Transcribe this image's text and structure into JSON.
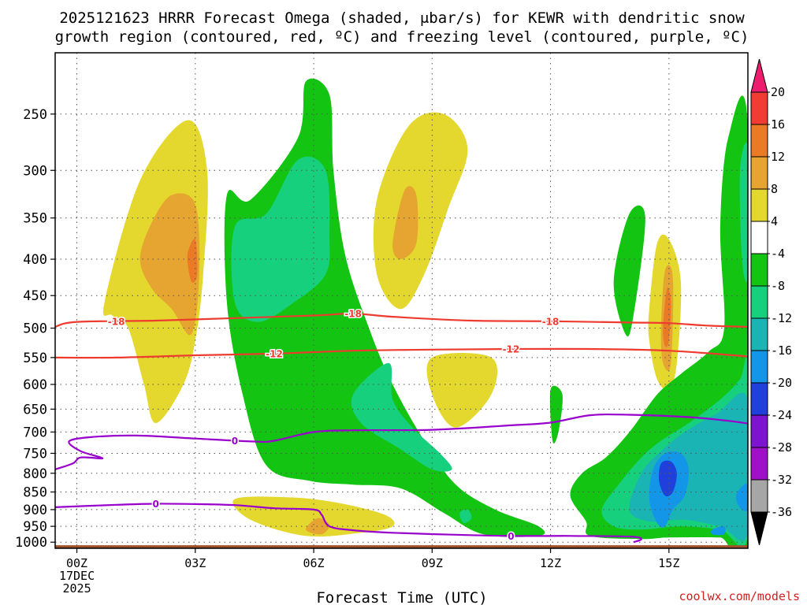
{
  "chart_data": {
    "type": "contour",
    "title_lines": [
      "2025121623 HRRR Forecast Omega (shaded, μbar/s) for KEWR with dendritic snow",
      "growth region (contoured, red, ºC) and freezing level (contoured, purple, ºC)"
    ],
    "xlabel": "Forecast Time (UTC)",
    "x_ticks": [
      {
        "hour": 0,
        "label": "00Z",
        "sub": [
          "17DEC",
          "2025"
        ]
      },
      {
        "hour": 3,
        "label": "03Z"
      },
      {
        "hour": 6,
        "label": "06Z"
      },
      {
        "hour": 9,
        "label": "09Z"
      },
      {
        "hour": 12,
        "label": "12Z"
      },
      {
        "hour": 15,
        "label": "15Z"
      }
    ],
    "xlim": [
      -0.55,
      17
    ],
    "y_ticks": [
      250,
      300,
      350,
      400,
      450,
      500,
      550,
      600,
      650,
      700,
      750,
      800,
      850,
      900,
      950,
      1000
    ],
    "ylim_hPa": [
      1020,
      205
    ],
    "colorbar": {
      "labels": [
        "20",
        "16",
        "12",
        "8",
        "4",
        "-4",
        "-8",
        "-12",
        "-16",
        "-20",
        "-24",
        "-28",
        "-32",
        "-36"
      ],
      "colors": [
        "#ee1c6e",
        "#f03c33",
        "#ea7a25",
        "#e6a531",
        "#e4d82f",
        "#ffffff",
        "#13c413",
        "#16d07e",
        "#1ab4b4",
        "#1496e8",
        "#2040dc",
        "#7c14d0",
        "#a010c8",
        "#a6a6a6",
        "#000000"
      ]
    },
    "surface_color": "#a0522d",
    "omega_regions": [
      {
        "level": 4,
        "color": "#e4d82f",
        "points": [
          [
            0.7,
            460
          ],
          [
            1.6,
            310
          ],
          [
            2.8,
            255
          ],
          [
            3.3,
            300
          ],
          [
            3.2,
            420
          ],
          [
            3.0,
            520
          ],
          [
            2.7,
            600
          ],
          [
            2.0,
            680
          ],
          [
            1.7,
            600
          ],
          [
            1.3,
            500
          ],
          [
            0.9,
            480
          ]
        ]
      },
      {
        "level": 8,
        "color": "#e6a531",
        "points": [
          [
            1.6,
            400
          ],
          [
            1.9,
            355
          ],
          [
            2.4,
            325
          ],
          [
            3.0,
            335
          ],
          [
            3.1,
            420
          ],
          [
            2.9,
            510
          ],
          [
            2.4,
            470
          ],
          [
            1.9,
            440
          ]
        ]
      },
      {
        "level": 12,
        "color": "#ea7a25",
        "points": [
          [
            2.8,
            395
          ],
          [
            3.0,
            375
          ],
          [
            3.05,
            420
          ],
          [
            2.9,
            430
          ]
        ]
      },
      {
        "level": -4,
        "color": "#13c413",
        "points": [
          [
            3.8,
            325
          ],
          [
            4.4,
            330
          ],
          [
            5.6,
            270
          ],
          [
            5.8,
            225
          ],
          [
            6.4,
            235
          ],
          [
            6.5,
            300
          ],
          [
            6.8,
            395
          ],
          [
            7.4,
            500
          ],
          [
            8.0,
            600
          ],
          [
            8.8,
            720
          ],
          [
            9.6,
            830
          ],
          [
            10.6,
            900
          ],
          [
            11.7,
            950
          ],
          [
            11.7,
            980
          ],
          [
            10.3,
            975
          ],
          [
            9.3,
            910
          ],
          [
            8.2,
            840
          ],
          [
            7.0,
            830
          ],
          [
            5.9,
            820
          ],
          [
            4.8,
            780
          ],
          [
            4.2,
            620
          ],
          [
            3.8,
            460
          ]
        ]
      },
      {
        "level": -8,
        "color": "#16d07e",
        "points": [
          [
            4.0,
            460
          ],
          [
            4.0,
            360
          ],
          [
            4.8,
            345
          ],
          [
            5.6,
            290
          ],
          [
            6.3,
            300
          ],
          [
            6.4,
            370
          ],
          [
            6.3,
            420
          ],
          [
            5.5,
            460
          ],
          [
            4.6,
            490
          ]
        ]
      },
      {
        "level": -8,
        "color": "#16d07e",
        "points": [
          [
            7.9,
            560
          ],
          [
            8.0,
            630
          ],
          [
            8.5,
            690
          ],
          [
            9.2,
            750
          ],
          [
            9.5,
            790
          ],
          [
            9.0,
            790
          ],
          [
            8.2,
            740
          ],
          [
            7.2,
            680
          ],
          [
            7.0,
            620
          ]
        ]
      },
      {
        "level": -8,
        "color": "#16d07e",
        "points": [
          [
            9.7,
            910
          ],
          [
            9.9,
            900
          ],
          [
            10.0,
            925
          ],
          [
            9.8,
            940
          ]
        ]
      },
      {
        "level": 4,
        "color": "#e4d82f",
        "points": [
          [
            7.6,
            330
          ],
          [
            8.4,
            260
          ],
          [
            9.3,
            250
          ],
          [
            9.9,
            280
          ],
          [
            9.4,
            340
          ],
          [
            8.8,
            420
          ],
          [
            8.2,
            470
          ],
          [
            7.6,
            420
          ]
        ]
      },
      {
        "level": 8,
        "color": "#e6a531",
        "points": [
          [
            8.0,
            380
          ],
          [
            8.3,
            320
          ],
          [
            8.6,
            325
          ],
          [
            8.6,
            380
          ],
          [
            8.2,
            400
          ]
        ]
      },
      {
        "level": 4,
        "color": "#e4d82f",
        "points": [
          [
            9.0,
            550
          ],
          [
            10.5,
            550
          ],
          [
            10.5,
            620
          ],
          [
            9.6,
            690
          ],
          [
            9.0,
            620
          ]
        ]
      },
      {
        "level": 4,
        "color": "#e4d82f",
        "points": [
          [
            4.0,
            870
          ],
          [
            5.4,
            865
          ],
          [
            6.6,
            880
          ],
          [
            7.8,
            915
          ],
          [
            8.0,
            950
          ],
          [
            7.2,
            970
          ],
          [
            5.8,
            980
          ],
          [
            4.4,
            930
          ]
        ]
      },
      {
        "level": 8,
        "color": "#e6a531",
        "points": [
          [
            5.8,
            960
          ],
          [
            6.1,
            925
          ],
          [
            6.4,
            945
          ],
          [
            6.2,
            975
          ]
        ]
      },
      {
        "level": -4,
        "color": "#13c413",
        "points": [
          [
            12.0,
            610
          ],
          [
            12.3,
            620
          ],
          [
            12.2,
            700
          ],
          [
            12.05,
            720
          ]
        ]
      },
      {
        "level": -4,
        "color": "#13c413",
        "points": [
          [
            13.6,
            430
          ],
          [
            14.0,
            345
          ],
          [
            14.4,
            350
          ],
          [
            14.1,
            480
          ],
          [
            13.9,
            510
          ]
        ]
      },
      {
        "level": 4,
        "color": "#e4d82f",
        "points": [
          [
            14.5,
            470
          ],
          [
            14.7,
            380
          ],
          [
            15.0,
            375
          ],
          [
            15.3,
            430
          ],
          [
            15.2,
            560
          ],
          [
            15.0,
            610
          ],
          [
            14.7,
            590
          ],
          [
            14.5,
            520
          ]
        ]
      },
      {
        "level": 8,
        "color": "#e6a531",
        "points": [
          [
            14.8,
            500
          ],
          [
            14.9,
            415
          ],
          [
            15.1,
            425
          ],
          [
            15.05,
            560
          ],
          [
            14.85,
            560
          ]
        ]
      },
      {
        "level": 12,
        "color": "#ea7a25",
        "points": [
          [
            14.85,
            500
          ],
          [
            14.95,
            440
          ],
          [
            15.05,
            460
          ],
          [
            15.0,
            520
          ],
          [
            14.9,
            530
          ]
        ]
      },
      {
        "level": -4,
        "color": "#13c413",
        "points": [
          [
            16.4,
            500
          ],
          [
            16.3,
            360
          ],
          [
            16.5,
            270
          ],
          [
            17.0,
            260
          ],
          [
            17.0,
            995
          ],
          [
            16.3,
            985
          ],
          [
            15.0,
            985
          ],
          [
            14.3,
            990
          ],
          [
            13.0,
            980
          ],
          [
            12.9,
            935
          ],
          [
            12.5,
            860
          ],
          [
            12.8,
            800
          ],
          [
            13.4,
            760
          ],
          [
            14.0,
            700
          ],
          [
            14.7,
            620
          ],
          [
            15.3,
            580
          ],
          [
            16.0,
            540
          ]
        ]
      },
      {
        "level": -8,
        "color": "#16d07e",
        "points": [
          [
            13.3,
            900
          ],
          [
            13.8,
            820
          ],
          [
            14.3,
            760
          ],
          [
            14.8,
            720
          ],
          [
            15.5,
            680
          ],
          [
            16.3,
            630
          ],
          [
            16.8,
            590
          ],
          [
            17.0,
            560
          ],
          [
            17.0,
            980
          ],
          [
            16.3,
            960
          ],
          [
            15.3,
            950
          ],
          [
            14.3,
            960
          ],
          [
            13.6,
            950
          ]
        ]
      },
      {
        "level": -12,
        "color": "#1ab4b4",
        "points": [
          [
            14.0,
            900
          ],
          [
            14.3,
            800
          ],
          [
            14.8,
            745
          ],
          [
            15.4,
            700
          ],
          [
            16.2,
            660
          ],
          [
            17.0,
            630
          ],
          [
            17.0,
            970
          ],
          [
            16.3,
            950
          ],
          [
            15.4,
            930
          ],
          [
            14.5,
            935
          ]
        ]
      },
      {
        "level": -16,
        "color": "#1496e8",
        "points": [
          [
            14.5,
            870
          ],
          [
            14.6,
            790
          ],
          [
            14.9,
            750
          ],
          [
            15.3,
            750
          ],
          [
            15.5,
            790
          ],
          [
            15.4,
            860
          ],
          [
            15.1,
            900
          ],
          [
            14.9,
            950
          ],
          [
            14.7,
            940
          ]
        ]
      },
      {
        "level": -16,
        "color": "#1496e8",
        "points": [
          [
            16.7,
            860
          ],
          [
            16.9,
            830
          ],
          [
            17.0,
            835
          ],
          [
            17.0,
            900
          ],
          [
            16.8,
            895
          ]
        ]
      },
      {
        "level": -16,
        "color": "#1496e8",
        "points": [
          [
            16.1,
            960
          ],
          [
            16.4,
            950
          ],
          [
            16.4,
            975
          ],
          [
            16.1,
            975
          ]
        ]
      },
      {
        "level": -20,
        "color": "#2040dc",
        "points": [
          [
            14.75,
            820
          ],
          [
            14.8,
            775
          ],
          [
            15.05,
            770
          ],
          [
            15.2,
            800
          ],
          [
            15.1,
            850
          ],
          [
            14.9,
            860
          ]
        ]
      },
      {
        "level": -8,
        "color": "#16d07e",
        "points": [
          [
            16.8,
            300
          ],
          [
            17.0,
            280
          ],
          [
            17.0,
            420
          ],
          [
            16.85,
            400
          ]
        ]
      }
    ],
    "dgz_contours": [
      {
        "value": -18,
        "label": "-18",
        "color": "#ee3b2f",
        "label_hours": [
          1.0,
          7.0,
          12.0
        ],
        "points": [
          [
            -0.55,
            498
          ],
          [
            0,
            490
          ],
          [
            2,
            488
          ],
          [
            4,
            484
          ],
          [
            6,
            480
          ],
          [
            7,
            477
          ],
          [
            8,
            482
          ],
          [
            10,
            488
          ],
          [
            12,
            489
          ],
          [
            14,
            491
          ],
          [
            15,
            492
          ],
          [
            16,
            496
          ],
          [
            17,
            498
          ]
        ]
      },
      {
        "value": -12,
        "label": "-12",
        "color": "#ee3b2f",
        "label_hours": [
          5.0,
          11.0
        ],
        "points": [
          [
            -0.55,
            550
          ],
          [
            1,
            550
          ],
          [
            3,
            546
          ],
          [
            5,
            543
          ],
          [
            7,
            538
          ],
          [
            9,
            536
          ],
          [
            11,
            535
          ],
          [
            13,
            535
          ],
          [
            15,
            538
          ],
          [
            17,
            548
          ]
        ]
      }
    ],
    "freezing_contours": [
      {
        "value": 0,
        "label": "0",
        "color": "#9900cc",
        "label_hours": [
          4.0
        ],
        "points": [
          [
            -0.55,
            790
          ],
          [
            -0.1,
            775
          ],
          [
            0.1,
            760
          ],
          [
            0.65,
            762
          ],
          [
            0.1,
            745
          ],
          [
            -0.2,
            722
          ],
          [
            0.3,
            712
          ],
          [
            1.5,
            708
          ],
          [
            3.0,
            715
          ],
          [
            4.5,
            722
          ],
          [
            5.0,
            720
          ],
          [
            6.0,
            700
          ],
          [
            7.0,
            696
          ],
          [
            9.0,
            695
          ],
          [
            11.0,
            685
          ],
          [
            12.0,
            679
          ],
          [
            13.0,
            663
          ],
          [
            14.0,
            662
          ],
          [
            15.5,
            667
          ],
          [
            16.5,
            675
          ],
          [
            17.0,
            681
          ]
        ]
      },
      {
        "value": 0,
        "label": "0",
        "color": "#9900cc",
        "label_hours": [
          2.0,
          11.0
        ],
        "points": [
          [
            -0.55,
            893
          ],
          [
            1,
            886
          ],
          [
            2,
            883
          ],
          [
            3,
            884
          ],
          [
            4,
            887
          ],
          [
            5,
            896
          ],
          [
            6,
            900
          ],
          [
            6.2,
            915
          ],
          [
            6.4,
            950
          ],
          [
            7,
            962
          ],
          [
            8,
            970
          ],
          [
            9.5,
            976
          ],
          [
            11,
            980
          ],
          [
            12.5,
            980
          ],
          [
            14,
            982
          ],
          [
            14.3,
            990
          ],
          [
            14.1,
            1000
          ]
        ]
      }
    ]
  },
  "footer": {
    "credit": "coolwx.com/models"
  }
}
